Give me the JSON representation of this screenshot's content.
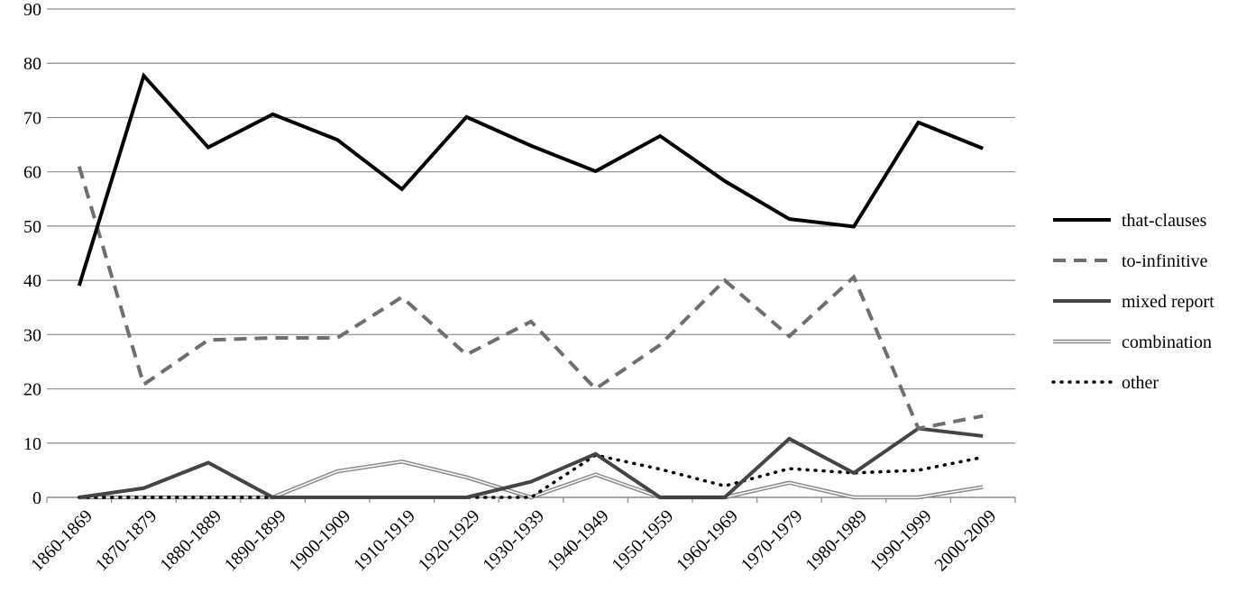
{
  "chart_data": {
    "type": "line",
    "title": "",
    "xlabel": "",
    "ylabel": "",
    "ylim": [
      0,
      90
    ],
    "yticks": [
      0,
      10,
      20,
      30,
      40,
      50,
      60,
      70,
      80,
      90
    ],
    "grid": true,
    "legend_position": "right",
    "categories": [
      "1860-1869",
      "1870-1879",
      "1880-1889",
      "1890-1899",
      "1900-1909",
      "1910-1919",
      "1920-1929",
      "1930-1939",
      "1940-1949",
      "1950-1959",
      "1960-1969",
      "1970-1979",
      "1980-1989",
      "1990-1999",
      "2000-2009"
    ],
    "series": [
      {
        "name": "that-clauses",
        "style": "solid-thick",
        "color": "#000000",
        "values": [
          39,
          77.7,
          64.5,
          70.6,
          65.9,
          56.8,
          70.1,
          64.8,
          60.1,
          66.6,
          58.3,
          51.3,
          49.9,
          69.1,
          64.3
        ]
      },
      {
        "name": "to-infinitive",
        "style": "dashed",
        "color": "#6e6e6e",
        "values": [
          61,
          20.8,
          29,
          29.4,
          29.4,
          36.9,
          26.3,
          32.4,
          20,
          28.1,
          40,
          29.7,
          40.6,
          12.7,
          15
        ]
      },
      {
        "name": "mixed report",
        "style": "solid",
        "color": "#444444",
        "values": [
          0,
          1.7,
          6.4,
          0,
          0,
          0,
          0,
          2.9,
          8,
          0,
          0,
          10.8,
          4.5,
          12.7,
          11.3
        ]
      },
      {
        "name": "combination",
        "style": "double",
        "color": "#8a8a8a",
        "values": [
          0,
          0,
          0,
          0,
          4.8,
          6.6,
          3.7,
          0,
          4.2,
          0,
          0,
          2.7,
          0,
          0,
          1.9
        ]
      },
      {
        "name": "other",
        "style": "dotted",
        "color": "#000000",
        "values": [
          0,
          0,
          0,
          0,
          0,
          0,
          0,
          0,
          7.8,
          5.2,
          2.1,
          5.3,
          4.5,
          5,
          7.4
        ]
      }
    ]
  }
}
